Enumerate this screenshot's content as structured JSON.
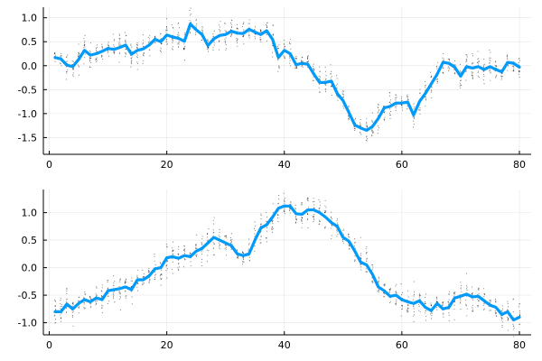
{
  "chart_data": [
    {
      "type": "scatter+line",
      "title": "",
      "xlabel": "",
      "ylabel": "",
      "xlim": [
        -1,
        82
      ],
      "ylim": [
        -1.85,
        1.22
      ],
      "xticks": [
        0,
        20,
        40,
        60,
        80
      ],
      "xtick_labels": [
        "0",
        "20",
        "40",
        "60",
        "80"
      ],
      "yticks": [
        -1.5,
        -1.0,
        -0.5,
        0.0,
        0.5,
        1.0
      ],
      "ytick_labels": [
        "-1.5",
        "-1.0",
        "-0.5",
        "0.0",
        "0.5",
        "1.0"
      ],
      "grid": true,
      "legend": "none",
      "line_color": "#009AFA",
      "dot_color": "#000000",
      "x": [
        1,
        2,
        3,
        4,
        5,
        6,
        7,
        8,
        9,
        10,
        11,
        12,
        13,
        14,
        15,
        16,
        17,
        18,
        19,
        20,
        21,
        22,
        23,
        24,
        25,
        26,
        27,
        28,
        29,
        30,
        31,
        32,
        33,
        34,
        35,
        36,
        37,
        38,
        39,
        40,
        41,
        42,
        43,
        44,
        45,
        46,
        47,
        48,
        49,
        50,
        51,
        52,
        53,
        54,
        55,
        56,
        57,
        58,
        59,
        60,
        61,
        62,
        63,
        64,
        65,
        66,
        67,
        68,
        69,
        70,
        71,
        72,
        73,
        74,
        75,
        76,
        77,
        78,
        79,
        80
      ],
      "series": [
        {
          "kind": "mean-line",
          "values": [
            0.17,
            0.14,
            0.01,
            -0.02,
            0.13,
            0.32,
            0.22,
            0.25,
            0.3,
            0.36,
            0.34,
            0.38,
            0.43,
            0.24,
            0.32,
            0.35,
            0.43,
            0.55,
            0.5,
            0.64,
            0.6,
            0.57,
            0.51,
            0.87,
            0.75,
            0.65,
            0.42,
            0.56,
            0.63,
            0.65,
            0.72,
            0.68,
            0.67,
            0.76,
            0.7,
            0.65,
            0.73,
            0.55,
            0.17,
            0.32,
            0.25,
            0.02,
            0.05,
            0.03,
            -0.17,
            -0.35,
            -0.35,
            -0.32,
            -0.58,
            -0.73,
            -0.98,
            -1.24,
            -1.3,
            -1.35,
            -1.27,
            -1.1,
            -0.88,
            -0.85,
            -0.78,
            -0.78,
            -0.76,
            -1.03,
            -0.75,
            -0.58,
            -0.38,
            -0.18,
            0.07,
            0.05,
            -0.03,
            -0.22,
            -0.02,
            -0.05,
            -0.02,
            -0.08,
            -0.02,
            -0.08,
            -0.13,
            0.07,
            0.05,
            -0.03
          ]
        }
      ]
    },
    {
      "type": "scatter+line",
      "title": "",
      "xlabel": "",
      "ylabel": "",
      "xlim": [
        -1,
        82
      ],
      "ylim": [
        -1.22,
        1.42
      ],
      "xticks": [
        0,
        20,
        40,
        60,
        80
      ],
      "xtick_labels": [
        "0",
        "20",
        "40",
        "60",
        "80"
      ],
      "yticks": [
        -1.0,
        -0.5,
        0.0,
        0.5,
        1.0
      ],
      "ytick_labels": [
        "-1.0",
        "-0.5",
        "0.0",
        "0.5",
        "1.0"
      ],
      "grid": true,
      "legend": "none",
      "line_color": "#009AFA",
      "dot_color": "#000000",
      "x": [
        1,
        2,
        3,
        4,
        5,
        6,
        7,
        8,
        9,
        10,
        11,
        12,
        13,
        14,
        15,
        16,
        17,
        18,
        19,
        20,
        21,
        22,
        23,
        24,
        25,
        26,
        27,
        28,
        29,
        30,
        31,
        32,
        33,
        34,
        35,
        36,
        37,
        38,
        39,
        40,
        41,
        42,
        43,
        44,
        45,
        46,
        47,
        48,
        49,
        50,
        51,
        52,
        53,
        54,
        55,
        56,
        57,
        58,
        59,
        60,
        61,
        62,
        63,
        64,
        65,
        66,
        67,
        68,
        69,
        70,
        71,
        72,
        73,
        74,
        75,
        76,
        77,
        78,
        79,
        80
      ],
      "series": [
        {
          "kind": "mean-line",
          "values": [
            -0.8,
            -0.8,
            -0.66,
            -0.75,
            -0.65,
            -0.58,
            -0.62,
            -0.55,
            -0.58,
            -0.42,
            -0.4,
            -0.38,
            -0.35,
            -0.4,
            -0.22,
            -0.22,
            -0.15,
            -0.02,
            0.0,
            0.18,
            0.2,
            0.17,
            0.22,
            0.2,
            0.3,
            0.35,
            0.45,
            0.55,
            0.5,
            0.45,
            0.4,
            0.25,
            0.22,
            0.25,
            0.5,
            0.72,
            0.78,
            0.92,
            1.08,
            1.12,
            1.12,
            0.98,
            0.97,
            1.05,
            1.05,
            1.0,
            0.92,
            0.82,
            0.75,
            0.55,
            0.48,
            0.3,
            0.1,
            0.05,
            -0.12,
            -0.35,
            -0.42,
            -0.52,
            -0.5,
            -0.58,
            -0.62,
            -0.65,
            -0.6,
            -0.72,
            -0.78,
            -0.65,
            -0.75,
            -0.72,
            -0.55,
            -0.52,
            -0.48,
            -0.53,
            -0.52,
            -0.6,
            -0.68,
            -0.72,
            -0.85,
            -0.8,
            -0.95,
            -0.9
          ]
        }
      ]
    }
  ]
}
